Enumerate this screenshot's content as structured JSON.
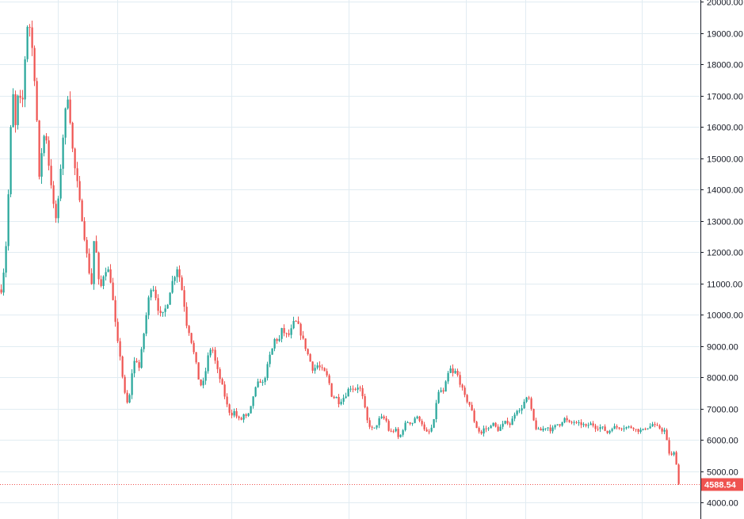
{
  "colors": {
    "up": "#26a69a",
    "down": "#ef5350",
    "grid": "#e1ecf2",
    "axis": "#131722",
    "price_line": "#ef5350",
    "price_tag_bg": "#ef5350",
    "price_tag_text": "#ffffff"
  },
  "chart_data": {
    "type": "candlestick",
    "title": "",
    "xlabel": "",
    "ylabel": "",
    "ylim": [
      3500,
      20050
    ],
    "y_axis_side": "right",
    "grid": true,
    "y_ticks": [
      20000,
      19000,
      18000,
      17000,
      16000,
      15000,
      14000,
      13000,
      12000,
      11000,
      10000,
      9000,
      8000,
      7000,
      6000,
      5000,
      4000
    ],
    "y_tick_labels": [
      "20000.00",
      "19000.00",
      "18000.00",
      "17000.00",
      "16000.00",
      "15000.00",
      "14000.00",
      "13000.00",
      "12000.00",
      "11000.00",
      "10000.00",
      "9000.00",
      "8000.00",
      "7000.00",
      "6000.00",
      "5000.00",
      "4000.00"
    ],
    "last_price": 4588.54,
    "last_price_label": "4588.54",
    "close_path": [
      [
        0,
        10800
      ],
      [
        3,
        11400
      ],
      [
        7,
        12500
      ],
      [
        10,
        14500
      ],
      [
        14,
        17300
      ],
      [
        18,
        16000
      ],
      [
        22,
        17200
      ],
      [
        26,
        16400
      ],
      [
        30,
        18200
      ],
      [
        34,
        19600
      ],
      [
        38,
        18800
      ],
      [
        42,
        17600
      ],
      [
        45,
        16200
      ],
      [
        48,
        14300
      ],
      [
        52,
        15500
      ],
      [
        56,
        15900
      ],
      [
        60,
        14800
      ],
      [
        64,
        14000
      ],
      [
        68,
        12900
      ],
      [
        72,
        13600
      ],
      [
        76,
        15100
      ],
      [
        80,
        16300
      ],
      [
        84,
        17000
      ],
      [
        88,
        16000
      ],
      [
        91,
        14900
      ],
      [
        95,
        14400
      ],
      [
        98,
        13700
      ],
      [
        102,
        13100
      ],
      [
        106,
        12300
      ],
      [
        110,
        11500
      ],
      [
        114,
        11000
      ],
      [
        118,
        12800
      ],
      [
        122,
        11100
      ],
      [
        126,
        10900
      ],
      [
        130,
        11400
      ],
      [
        134,
        11500
      ],
      [
        138,
        11100
      ],
      [
        142,
        10200
      ],
      [
        146,
        9200
      ],
      [
        150,
        8700
      ],
      [
        154,
        7800
      ],
      [
        158,
        7100
      ],
      [
        162,
        7400
      ],
      [
        166,
        8400
      ],
      [
        170,
        8600
      ],
      [
        174,
        8300
      ],
      [
        178,
        9000
      ],
      [
        182,
        9800
      ],
      [
        186,
        10500
      ],
      [
        190,
        11000
      ],
      [
        194,
        10700
      ],
      [
        198,
        10200
      ],
      [
        202,
        9900
      ],
      [
        206,
        10100
      ],
      [
        210,
        10400
      ],
      [
        214,
        10900
      ],
      [
        218,
        11200
      ],
      [
        222,
        11500
      ],
      [
        226,
        11100
      ],
      [
        230,
        10500
      ],
      [
        234,
        9700
      ],
      [
        238,
        9400
      ],
      [
        242,
        8900
      ],
      [
        246,
        8400
      ],
      [
        250,
        7800
      ],
      [
        254,
        7700
      ],
      [
        258,
        8200
      ],
      [
        262,
        8800
      ],
      [
        266,
        9000
      ],
      [
        270,
        8500
      ],
      [
        274,
        8100
      ],
      [
        278,
        7800
      ],
      [
        282,
        7400
      ],
      [
        286,
        7000
      ],
      [
        290,
        6800
      ],
      [
        294,
        6900
      ],
      [
        298,
        6700
      ],
      [
        302,
        6600
      ],
      [
        306,
        6800
      ],
      [
        310,
        6700
      ],
      [
        314,
        6900
      ],
      [
        318,
        7400
      ],
      [
        322,
        7700
      ],
      [
        326,
        7900
      ],
      [
        330,
        7800
      ],
      [
        334,
        8100
      ],
      [
        338,
        8600
      ],
      [
        342,
        8900
      ],
      [
        346,
        9300
      ],
      [
        350,
        9100
      ],
      [
        354,
        9500
      ],
      [
        358,
        9400
      ],
      [
        362,
        9300
      ],
      [
        366,
        9500
      ],
      [
        370,
        9800
      ],
      [
        374,
        9700
      ],
      [
        378,
        9400
      ],
      [
        382,
        9100
      ],
      [
        386,
        8800
      ],
      [
        390,
        8500
      ],
      [
        394,
        8200
      ],
      [
        398,
        8400
      ],
      [
        402,
        8300
      ],
      [
        406,
        8200
      ],
      [
        410,
        8100
      ],
      [
        414,
        7800
      ],
      [
        418,
        7300
      ],
      [
        422,
        7400
      ],
      [
        426,
        7200
      ],
      [
        430,
        7300
      ],
      [
        434,
        7400
      ],
      [
        438,
        7600
      ],
      [
        442,
        7700
      ],
      [
        446,
        7600
      ],
      [
        450,
        7700
      ],
      [
        454,
        7600
      ],
      [
        458,
        7100
      ],
      [
        462,
        6600
      ],
      [
        466,
        6400
      ],
      [
        470,
        6300
      ],
      [
        474,
        6500
      ],
      [
        478,
        6700
      ],
      [
        482,
        6700
      ],
      [
        486,
        6600
      ],
      [
        490,
        6200
      ],
      [
        494,
        6300
      ],
      [
        498,
        6300
      ],
      [
        502,
        6000
      ],
      [
        506,
        6300
      ],
      [
        510,
        6500
      ],
      [
        514,
        6600
      ],
      [
        518,
        6500
      ],
      [
        522,
        6700
      ],
      [
        526,
        6700
      ],
      [
        530,
        6600
      ],
      [
        534,
        6300
      ],
      [
        538,
        6200
      ],
      [
        542,
        6300
      ],
      [
        546,
        6600
      ],
      [
        550,
        7400
      ],
      [
        554,
        7600
      ],
      [
        558,
        7500
      ],
      [
        562,
        7900
      ],
      [
        566,
        8300
      ],
      [
        570,
        8100
      ],
      [
        574,
        8200
      ],
      [
        578,
        7900
      ],
      [
        582,
        7600
      ],
      [
        586,
        7300
      ],
      [
        590,
        7200
      ],
      [
        594,
        6900
      ],
      [
        598,
        6500
      ],
      [
        602,
        6300
      ],
      [
        606,
        6200
      ],
      [
        610,
        6400
      ],
      [
        614,
        6300
      ],
      [
        618,
        6500
      ],
      [
        622,
        6500
      ],
      [
        626,
        6300
      ],
      [
        630,
        6400
      ],
      [
        634,
        6500
      ],
      [
        638,
        6600
      ],
      [
        642,
        6500
      ],
      [
        646,
        6700
      ],
      [
        650,
        7000
      ],
      [
        654,
        6900
      ],
      [
        658,
        7100
      ],
      [
        662,
        7300
      ],
      [
        666,
        7300
      ],
      [
        670,
        6800
      ],
      [
        674,
        6400
      ],
      [
        678,
        6300
      ],
      [
        682,
        6300
      ],
      [
        686,
        6400
      ],
      [
        690,
        6400
      ],
      [
        694,
        6300
      ],
      [
        698,
        6400
      ],
      [
        702,
        6500
      ],
      [
        706,
        6500
      ],
      [
        710,
        6700
      ],
      [
        714,
        6600
      ],
      [
        718,
        6500
      ],
      [
        722,
        6600
      ],
      [
        726,
        6500
      ],
      [
        730,
        6500
      ],
      [
        734,
        6500
      ],
      [
        738,
        6400
      ],
      [
        742,
        6500
      ],
      [
        746,
        6500
      ],
      [
        750,
        6400
      ],
      [
        754,
        6400
      ],
      [
        758,
        6400
      ],
      [
        762,
        6300
      ],
      [
        766,
        6200
      ],
      [
        770,
        6400
      ],
      [
        774,
        6400
      ],
      [
        778,
        6400
      ],
      [
        782,
        6400
      ],
      [
        786,
        6400
      ],
      [
        790,
        6400
      ],
      [
        794,
        6400
      ],
      [
        798,
        6400
      ],
      [
        802,
        6300
      ],
      [
        806,
        6300
      ],
      [
        810,
        6300
      ],
      [
        814,
        6400
      ],
      [
        818,
        6400
      ],
      [
        822,
        6500
      ],
      [
        826,
        6400
      ],
      [
        830,
        6400
      ],
      [
        834,
        6300
      ],
      [
        838,
        6300
      ],
      [
        842,
        5600
      ],
      [
        846,
        5500
      ],
      [
        850,
        5600
      ],
      [
        854,
        4900
      ],
      [
        857,
        4589
      ]
    ]
  }
}
